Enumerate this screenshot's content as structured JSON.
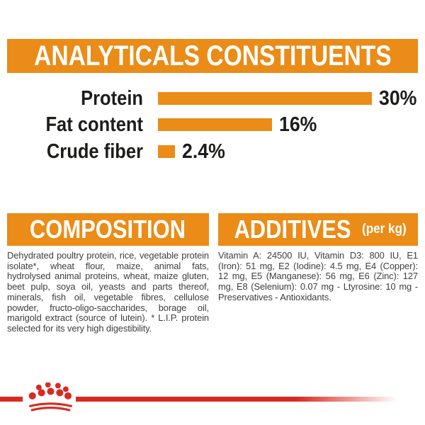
{
  "header": {
    "title": "ANALYTICALS CONSTITUENTS"
  },
  "chart_data": {
    "type": "bar",
    "orientation": "horizontal",
    "categories": [
      "Protein",
      "Fat content",
      "Crude fiber"
    ],
    "values": [
      30,
      16,
      2.4
    ],
    "value_labels": [
      "30%",
      "16%",
      "2.4%"
    ],
    "unit": "%",
    "xlim": [
      0,
      30
    ],
    "grid": false,
    "legend": "none",
    "bar_color": "#EA8C17",
    "label_color": "#1d1d1b"
  },
  "composition": {
    "title": "COMPOSITION",
    "body": "Dehydrated poultry protein, rice, vegetable protein isolate*, wheat flour, maize, animal fats, hydrolysed animal proteins, wheat, maize gluten, beet pulp, soya oil, yeasts and parts thereof, minerals, fish oil, vegetable fibres, cellulose powder, fructo-oligo-saccharides, borage oil, marigold extract (source of lutein). * L.I.P. protein selected for its very high digestibility."
  },
  "additives": {
    "title": "ADDITIVES",
    "subtitle": "(per kg)",
    "body": "Vitamin A: 24500 IU, Vitamin D3: 800 IU, E1 (Iron): 51 mg, E2 (Iodine): 4.5 mg, E4 (Copper): 12 mg, E5 (Manganese): 56 mg, E6 (Zinc): 127 mg, E8 (Selenium): 0.07 mg - Ltyrosine: 10 mg - Preservatives - Antioxidants."
  },
  "footer": {
    "logo": "royal-canin-crown-icon",
    "line_color": "#D92A21"
  },
  "colors": {
    "accent_orange": "#EA8C17",
    "brand_red": "#D92A21",
    "heading_text": "#ffffff",
    "chart_text": "#1d1d1b",
    "body_text": "#3e3e3e"
  }
}
